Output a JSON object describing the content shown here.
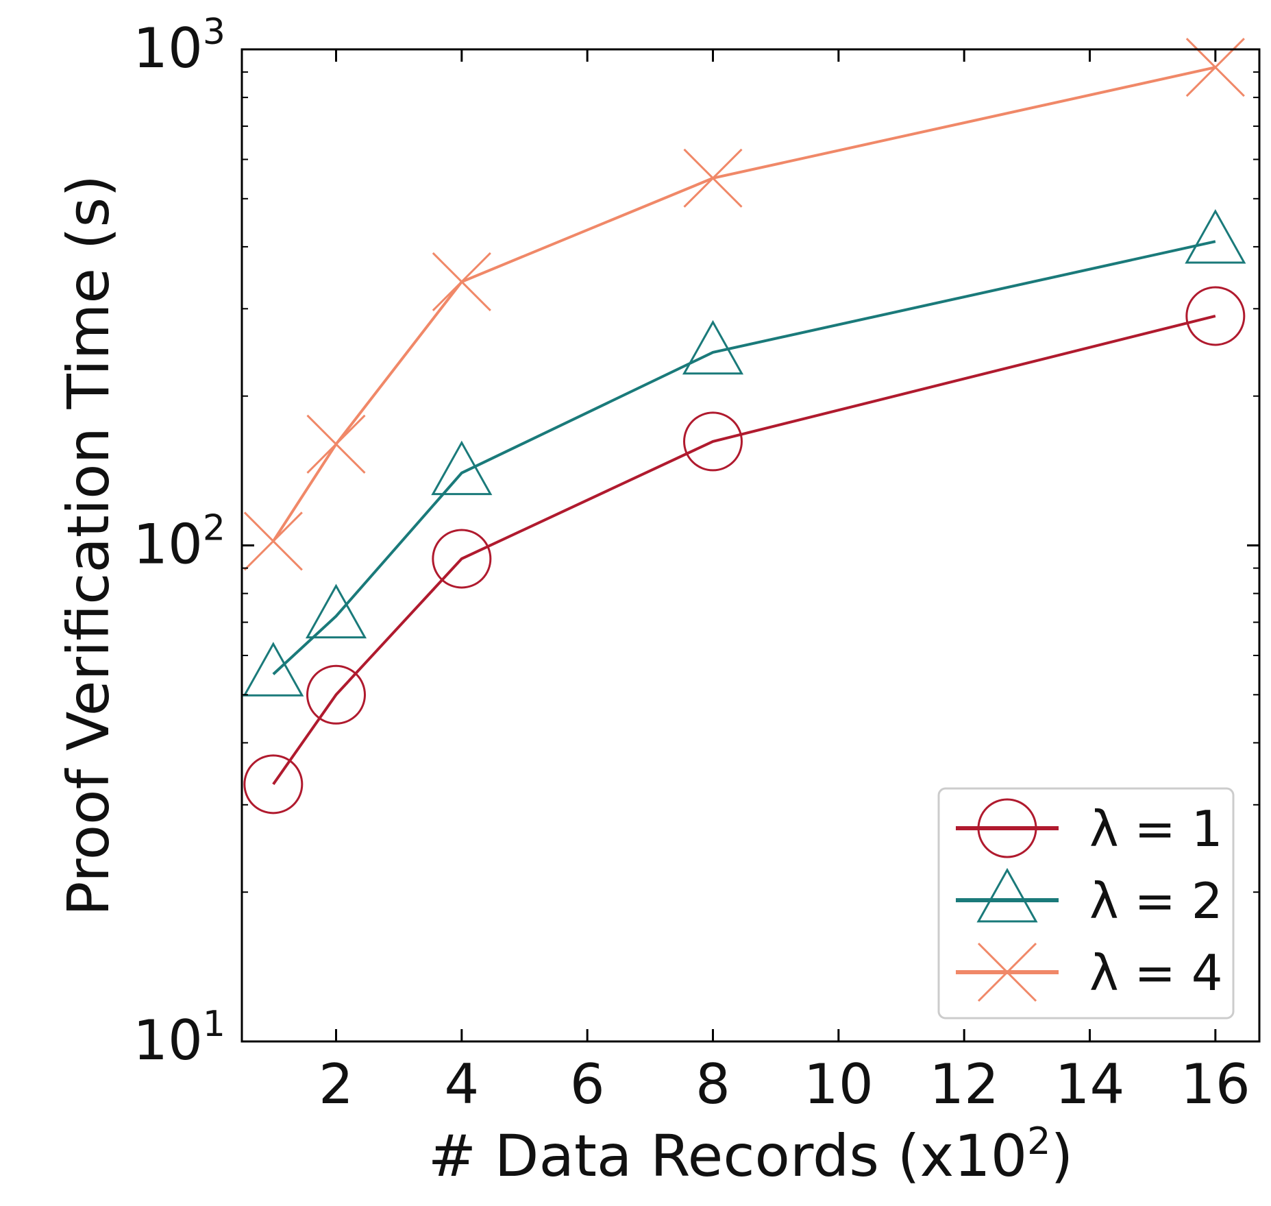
{
  "chart_data": {
    "type": "line",
    "xlabel": "# Data Records (x10",
    "xlabel_superscript": "2",
    "xlabel_suffix": ")",
    "ylabel": "Proof Verification Time (s)",
    "x_scale": "linear",
    "y_scale": "log",
    "xlim": [
      0.5,
      16.7
    ],
    "ylim": [
      10,
      1000
    ],
    "x_ticks": [
      2,
      4,
      6,
      8,
      10,
      12,
      14,
      16
    ],
    "x_tick_labels": [
      "2",
      "4",
      "6",
      "8",
      "10",
      "12",
      "14",
      "16"
    ],
    "y_ticks": [
      {
        "value": 10,
        "base": "10",
        "exp": "1"
      },
      {
        "value": 100,
        "base": "10",
        "exp": "2"
      },
      {
        "value": 1000,
        "base": "10",
        "exp": "3"
      }
    ],
    "grid": false,
    "legend_position": "lower right",
    "series": [
      {
        "name": "λ = 1",
        "color": "#b01a2e",
        "marker": "circle",
        "x": [
          1,
          2,
          4,
          8,
          16
        ],
        "y": [
          33,
          50,
          94,
          162,
          290
        ]
      },
      {
        "name": "λ = 2",
        "color": "#1a7a7a",
        "marker": "triangle",
        "x": [
          1,
          2,
          4,
          8,
          16
        ],
        "y": [
          55,
          72,
          140,
          245,
          410
        ]
      },
      {
        "name": "λ = 4",
        "color": "#f08868",
        "marker": "x",
        "x": [
          1,
          2,
          4,
          8,
          16
        ],
        "y": [
          102,
          160,
          340,
          550,
          920
        ]
      }
    ]
  }
}
